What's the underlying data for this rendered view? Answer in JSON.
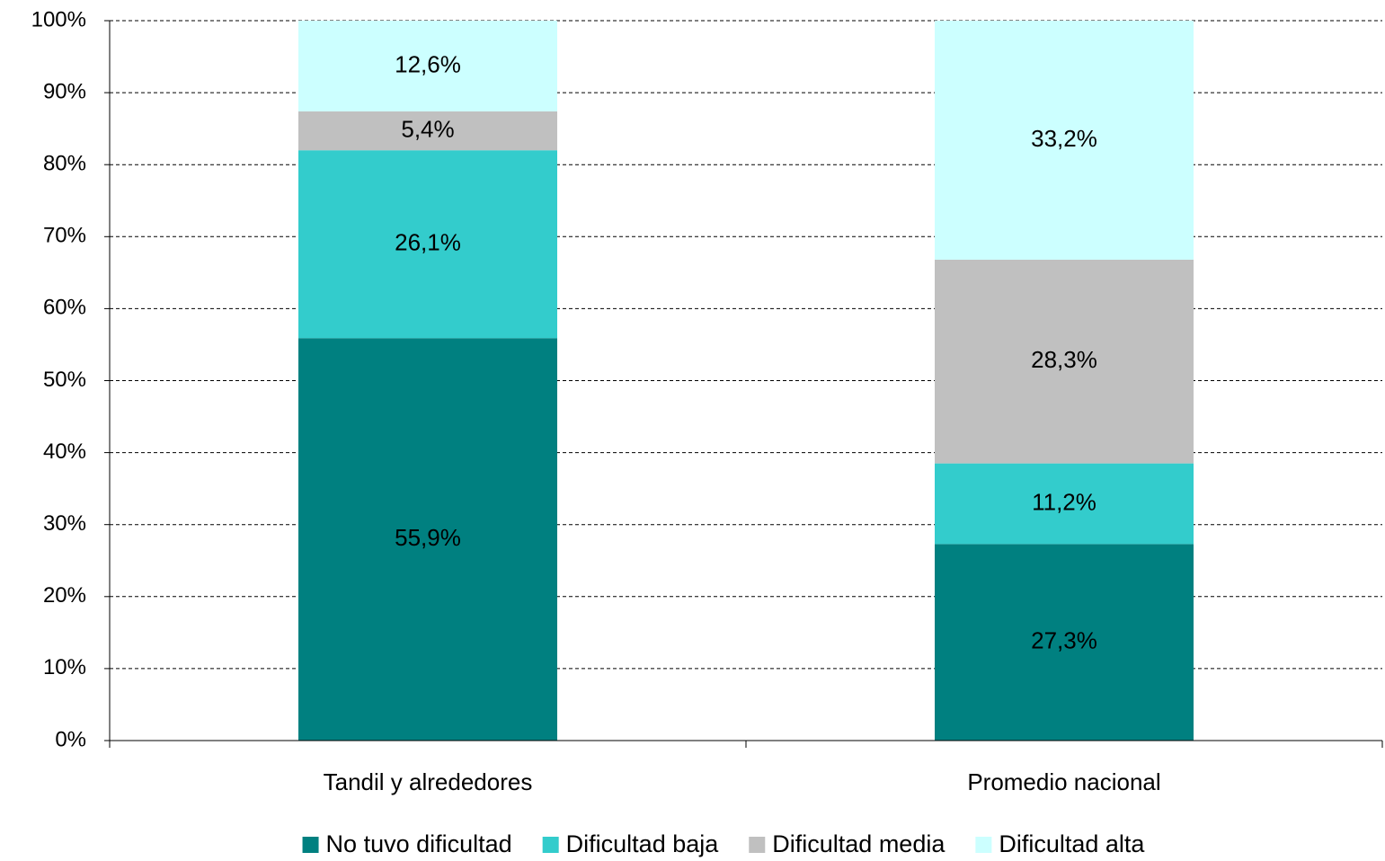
{
  "chart_data": {
    "type": "stacked_bar",
    "categories": [
      "Tandil y alrededores",
      "Promedio nacional"
    ],
    "series": [
      {
        "name": "No tuvo dificultad",
        "color": "#008080",
        "values": [
          55.9,
          27.3
        ],
        "value_labels": [
          "55,9%",
          "27,3%"
        ]
      },
      {
        "name": "Dificultad baja",
        "color": "#33CCCC",
        "values": [
          26.1,
          11.2
        ],
        "value_labels": [
          "26,1%",
          "11,2%"
        ]
      },
      {
        "name": "Dificultad media",
        "color": "#C0C0C0",
        "values": [
          5.4,
          28.3
        ],
        "value_labels": [
          "5,4%",
          "28,3%"
        ]
      },
      {
        "name": "Dificultad alta",
        "color": "#CCFFFF",
        "values": [
          12.6,
          33.2
        ],
        "value_labels": [
          "12,6%",
          "33,2%"
        ]
      }
    ],
    "ylim": [
      0,
      100
    ],
    "yticks": [
      {
        "value": 0,
        "label": "0%"
      },
      {
        "value": 10,
        "label": "10%"
      },
      {
        "value": 20,
        "label": "20%"
      },
      {
        "value": 30,
        "label": "30%"
      },
      {
        "value": 40,
        "label": "40%"
      },
      {
        "value": 50,
        "label": "50%"
      },
      {
        "value": 60,
        "label": "60%"
      },
      {
        "value": 70,
        "label": "70%"
      },
      {
        "value": 80,
        "label": "80%"
      },
      {
        "value": 90,
        "label": "90%"
      },
      {
        "value": 100,
        "label": "100%"
      }
    ],
    "grid": true,
    "legend": "bottom"
  }
}
